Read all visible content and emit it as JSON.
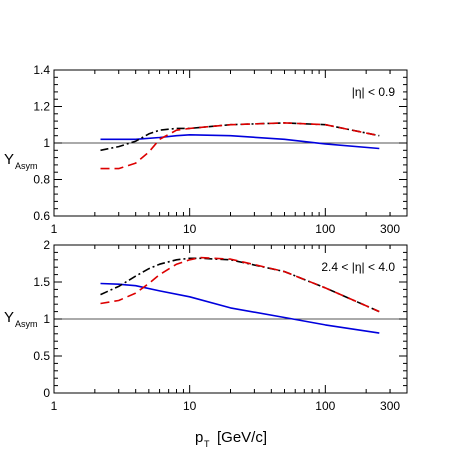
{
  "chart_data": [
    {
      "type": "line",
      "xscale": "log",
      "xlim": [
        1,
        400
      ],
      "ylim": [
        0.6,
        1.4
      ],
      "x_ticks": [
        "1",
        "10",
        "100",
        "300"
      ],
      "y_ticks": [
        "0.6",
        "0.8",
        "1",
        "1.2",
        "1.4"
      ],
      "ylabel_main": "Y",
      "ylabel_sub": "Asym",
      "annotation": "|η| < 0.9",
      "reference_line": 1,
      "series": [
        {
          "color": "#0000dd",
          "style": "solid",
          "x": [
            2.2,
            4,
            6,
            8,
            10,
            20,
            50,
            100,
            250
          ],
          "y": [
            1.02,
            1.02,
            1.03,
            1.04,
            1.045,
            1.04,
            1.02,
            0.995,
            0.97
          ]
        },
        {
          "color": "#000000",
          "style": "dashdot",
          "x": [
            2.2,
            3,
            4,
            5,
            6,
            8,
            10,
            20,
            50,
            100,
            250
          ],
          "y": [
            0.96,
            0.98,
            1.01,
            1.05,
            1.07,
            1.08,
            1.08,
            1.1,
            1.11,
            1.1,
            1.04
          ]
        },
        {
          "color": "#dd0000",
          "style": "dashed",
          "x": [
            2.2,
            3,
            4,
            5,
            6,
            8,
            10,
            20,
            50,
            100,
            250
          ],
          "y": [
            0.86,
            0.86,
            0.89,
            0.95,
            1.02,
            1.07,
            1.08,
            1.1,
            1.11,
            1.1,
            1.04
          ]
        }
      ]
    },
    {
      "type": "line",
      "xscale": "log",
      "xlim": [
        1,
        400
      ],
      "ylim": [
        0,
        2
      ],
      "x_ticks": [
        "1",
        "10",
        "100",
        "300"
      ],
      "y_ticks": [
        "0",
        "0.5",
        "1",
        "1.5",
        "2"
      ],
      "ylabel_main": "Y",
      "ylabel_sub": "Asym",
      "xlabel_main": "p",
      "xlabel_sub": "T",
      "xlabel_unit": "[GeV/c]",
      "annotation": "2.4 < |η| < 4.0",
      "reference_line": 1,
      "series": [
        {
          "color": "#0000dd",
          "style": "solid",
          "x": [
            2.2,
            3,
            4,
            6,
            10,
            20,
            50,
            100,
            250
          ],
          "y": [
            1.48,
            1.47,
            1.45,
            1.38,
            1.3,
            1.15,
            1.02,
            0.92,
            0.81
          ]
        },
        {
          "color": "#000000",
          "style": "dashdot",
          "x": [
            2.2,
            3,
            4,
            5,
            6,
            8,
            10,
            12,
            20,
            50,
            100,
            250
          ],
          "y": [
            1.33,
            1.44,
            1.58,
            1.68,
            1.74,
            1.8,
            1.82,
            1.82,
            1.8,
            1.64,
            1.42,
            1.1
          ]
        },
        {
          "color": "#dd0000",
          "style": "dashed",
          "x": [
            2.2,
            3,
            4,
            5,
            6,
            8,
            10,
            12,
            20,
            50,
            100,
            250
          ],
          "y": [
            1.21,
            1.25,
            1.35,
            1.48,
            1.6,
            1.74,
            1.8,
            1.83,
            1.81,
            1.64,
            1.42,
            1.1
          ]
        }
      ]
    }
  ]
}
